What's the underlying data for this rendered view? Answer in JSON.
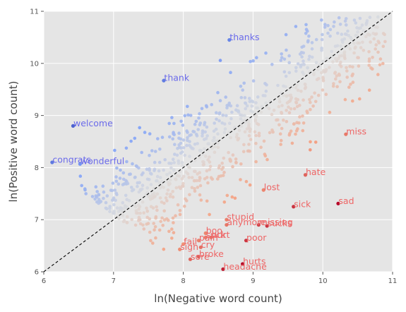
{
  "chart_data": {
    "type": "scatter",
    "xlabel": "ln(Negative word count)",
    "ylabel": "ln(Positive word count)",
    "xlim": [
      6,
      11
    ],
    "ylim": [
      6,
      11
    ],
    "x_ticks": [
      "6",
      "7",
      "8",
      "9",
      "10",
      "11"
    ],
    "y_ticks": [
      "6",
      "7",
      "8",
      "9",
      "10",
      "11"
    ],
    "grid": true,
    "diagonal": "dashed line y = x",
    "colormap": "coolwarm (blue = positive, red = negative)",
    "colors": {
      "background": "#e5e5e5",
      "grid": "#ffffff",
      "positive_label": "#6b6bea",
      "negative_label": "#ee6666",
      "diagonal": "#000000"
    },
    "labeled_points": [
      {
        "word": "thanks",
        "x": 8.66,
        "y": 10.45,
        "sentiment": "positive"
      },
      {
        "word": "thank",
        "x": 7.72,
        "y": 9.67,
        "sentiment": "positive"
      },
      {
        "word": "welcome",
        "x": 6.42,
        "y": 8.8,
        "sentiment": "positive"
      },
      {
        "word": "congrats",
        "x": 6.12,
        "y": 8.1,
        "sentiment": "positive"
      },
      {
        "word": "wonderful",
        "x": 6.52,
        "y": 8.07,
        "sentiment": "positive"
      },
      {
        "word": "miss",
        "x": 10.33,
        "y": 8.64,
        "sentiment": "negative"
      },
      {
        "word": "hate",
        "x": 9.75,
        "y": 7.86,
        "sentiment": "negative"
      },
      {
        "word": "lost",
        "x": 9.15,
        "y": 7.57,
        "sentiment": "negative"
      },
      {
        "word": "sick",
        "x": 9.58,
        "y": 7.25,
        "sentiment": "negative"
      },
      {
        "word": "sad",
        "x": 10.22,
        "y": 7.31,
        "sentiment": "negative"
      },
      {
        "word": "stupid",
        "x": 8.62,
        "y": 7.0,
        "sentiment": "negative"
      },
      {
        "word": "anymore",
        "x": 8.62,
        "y": 6.9,
        "sentiment": "negative"
      },
      {
        "word": "missing",
        "x": 9.08,
        "y": 6.9,
        "sentiment": "negative"
      },
      {
        "word": "sucks",
        "x": 9.2,
        "y": 6.88,
        "sentiment": "negative"
      },
      {
        "word": "boo",
        "x": 8.32,
        "y": 6.74,
        "sentiment": "negative"
      },
      {
        "word": "suck",
        "x": 8.32,
        "y": 6.66,
        "sentiment": "negative"
      },
      {
        "word": "hurt",
        "x": 8.4,
        "y": 6.66,
        "sentiment": "negative"
      },
      {
        "word": "poor",
        "x": 8.9,
        "y": 6.6,
        "sentiment": "negative"
      },
      {
        "word": "pain",
        "x": 8.22,
        "y": 6.6,
        "sentiment": "negative"
      },
      {
        "word": "fail",
        "x": 8.0,
        "y": 6.53,
        "sentiment": "negative"
      },
      {
        "word": "cry",
        "x": 8.25,
        "y": 6.47,
        "sentiment": "negative"
      },
      {
        "word": "sigh",
        "x": 7.95,
        "y": 6.43,
        "sentiment": "negative"
      },
      {
        "word": "broke",
        "x": 8.22,
        "y": 6.29,
        "sentiment": "negative"
      },
      {
        "word": "sore",
        "x": 8.1,
        "y": 6.24,
        "sentiment": "negative"
      },
      {
        "word": "hurts",
        "x": 8.85,
        "y": 6.15,
        "sentiment": "negative"
      },
      {
        "word": "headache",
        "x": 8.57,
        "y": 6.05,
        "sentiment": "negative"
      }
    ]
  }
}
